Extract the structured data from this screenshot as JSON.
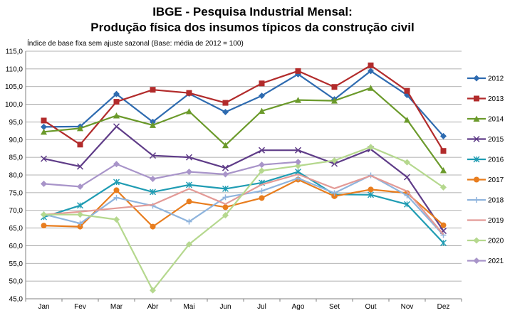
{
  "chart_data": {
    "type": "line",
    "title": "IBGE - Pesquisa Industrial Mensal:",
    "subtitle": "Produção física dos insumos típicos da construção civil",
    "ylabel": "Índice de base fixa sem ajuste sazonal (Base: média de 2012 = 100)",
    "xlabel": "",
    "categories": [
      "Jan",
      "Fev",
      "Mar",
      "Abr",
      "Mai",
      "Jun",
      "Jul",
      "Ago",
      "Set",
      "Out",
      "Nov",
      "Dez"
    ],
    "ylim": [
      45,
      115
    ],
    "ytick_step": 5,
    "ytick_labels": [
      "45,0",
      "50,0",
      "55,0",
      "60,0",
      "65,0",
      "70,0",
      "75,0",
      "80,0",
      "85,0",
      "90,0",
      "95,0",
      "100,0",
      "105,0",
      "110,0",
      "115,0"
    ],
    "grid": true,
    "legend_position": "right",
    "series": [
      {
        "name": "2012",
        "color": "#2E6BB0",
        "marker": "diamond",
        "values": [
          93.6,
          93.7,
          102.9,
          95.0,
          103.0,
          97.8,
          102.4,
          108.5,
          101.4,
          109.4,
          102.6,
          91.0
        ]
      },
      {
        "name": "2013",
        "color": "#B22B2B",
        "marker": "square",
        "values": [
          95.4,
          88.6,
          100.7,
          104.1,
          103.2,
          100.4,
          105.9,
          109.4,
          104.9,
          111.0,
          103.8,
          86.8
        ]
      },
      {
        "name": "2014",
        "color": "#6B9A2B",
        "marker": "triangle",
        "values": [
          92.2,
          93.2,
          96.8,
          94.1,
          98.0,
          88.4,
          98.1,
          101.2,
          101.0,
          104.6,
          95.6,
          81.3
        ]
      },
      {
        "name": "2015",
        "color": "#5F3C88",
        "marker": "x",
        "values": [
          84.6,
          82.4,
          93.7,
          85.5,
          85.0,
          82.0,
          87.0,
          87.0,
          83.2,
          87.3,
          79.4,
          64.2
        ]
      },
      {
        "name": "2016",
        "color": "#1F9CB3",
        "marker": "star",
        "values": [
          68.1,
          71.4,
          78.0,
          75.2,
          77.2,
          76.1,
          77.8,
          80.9,
          74.5,
          74.4,
          71.7,
          60.8
        ]
      },
      {
        "name": "2017",
        "color": "#E87D1E",
        "marker": "circle",
        "values": [
          65.7,
          65.4,
          75.7,
          65.4,
          72.5,
          70.9,
          73.5,
          78.7,
          74.0,
          75.9,
          74.9,
          65.8
        ]
      },
      {
        "name": "2018",
        "color": "#8FB4DD",
        "marker": "plus",
        "values": [
          68.9,
          66.3,
          73.6,
          71.3,
          66.8,
          73.7,
          75.5,
          79.1,
          74.9,
          79.9,
          74.2,
          63.0
        ]
      },
      {
        "name": "2019",
        "color": "#E39A96",
        "marker": "none",
        "values": [
          68.8,
          69.6,
          70.6,
          71.6,
          76.1,
          71.8,
          77.3,
          80.2,
          76.2,
          79.8,
          75.4,
          63.2
        ]
      },
      {
        "name": "2020",
        "color": "#B5D88E",
        "marker": "diamond",
        "values": [
          68.8,
          68.8,
          67.4,
          47.4,
          60.4,
          68.6,
          81.2,
          82.6,
          84.1,
          87.9,
          83.6,
          76.5
        ]
      },
      {
        "name": "2021",
        "color": "#A894C9",
        "marker": "diamond",
        "values": [
          77.5,
          76.7,
          83.1,
          78.9,
          80.9,
          80.2,
          82.9,
          83.7,
          null,
          null,
          null,
          null
        ]
      }
    ]
  }
}
